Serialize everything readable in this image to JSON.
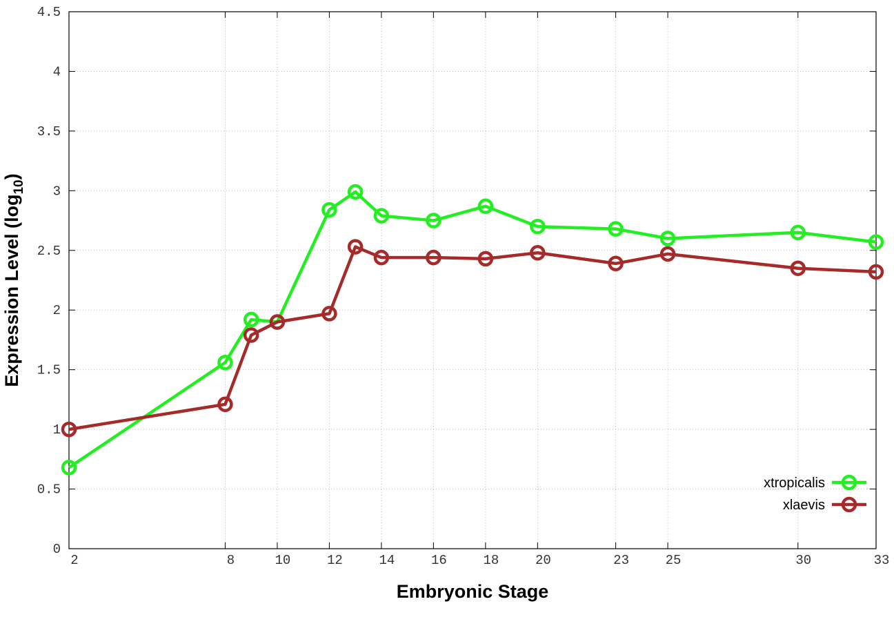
{
  "chart_data": {
    "type": "line",
    "x_label": "Embryonic Stage",
    "y_label": {
      "main": "Expression Level (log",
      "sub": "10",
      "end": ")"
    },
    "x": [
      2,
      8,
      9,
      10,
      12,
      13,
      14,
      16,
      18,
      20,
      23,
      25,
      30,
      33
    ],
    "series": [
      {
        "name": "xtropicalis",
        "color": "#22ee22",
        "values": [
          0.68,
          1.56,
          1.92,
          1.9,
          2.84,
          2.99,
          2.79,
          2.75,
          2.87,
          2.7,
          2.68,
          2.6,
          2.65,
          2.57
        ]
      },
      {
        "name": "xlaevis",
        "color": "#a52a2a",
        "values": [
          1.0,
          1.21,
          1.79,
          1.9,
          1.97,
          2.53,
          2.44,
          2.44,
          2.43,
          2.48,
          2.39,
          2.47,
          2.35,
          2.32
        ]
      }
    ],
    "xlim": [
      2,
      33
    ],
    "xticks": [
      2,
      8,
      10,
      12,
      14,
      16,
      18,
      20,
      23,
      25,
      30,
      33
    ],
    "ylim": [
      0,
      4.5
    ],
    "yticks": [
      0,
      0.5,
      1,
      1.5,
      2,
      2.5,
      3,
      3.5,
      4,
      4.5
    ],
    "grid": true,
    "legend": "lower right"
  }
}
